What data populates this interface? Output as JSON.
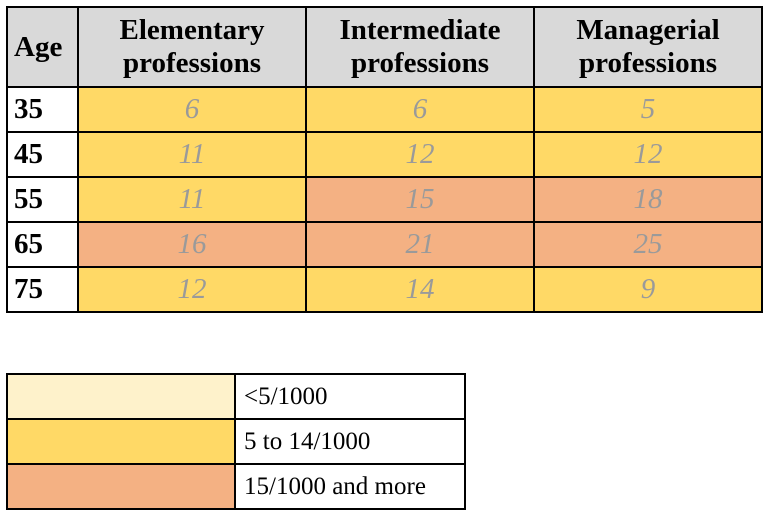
{
  "colors": {
    "low": "#fef2cb",
    "mid": "#ffd966",
    "high": "#f4b183",
    "header_bg": "#d9d9d9",
    "value_text": "#9a9a9a"
  },
  "table": {
    "headers": [
      "Age",
      "Elementary\nprofessions",
      "Intermediate\nprofessions",
      "Managerial\nprofessions"
    ],
    "rows": [
      {
        "age": "35",
        "cells": [
          {
            "value": "6",
            "level": "mid"
          },
          {
            "value": "6",
            "level": "mid"
          },
          {
            "value": "5",
            "level": "mid"
          }
        ]
      },
      {
        "age": "45",
        "cells": [
          {
            "value": "11",
            "level": "mid"
          },
          {
            "value": "12",
            "level": "mid"
          },
          {
            "value": "12",
            "level": "mid"
          }
        ]
      },
      {
        "age": "55",
        "cells": [
          {
            "value": "11",
            "level": "mid"
          },
          {
            "value": "15",
            "level": "high"
          },
          {
            "value": "18",
            "level": "high"
          }
        ]
      },
      {
        "age": "65",
        "cells": [
          {
            "value": "16",
            "level": "high"
          },
          {
            "value": "21",
            "level": "high"
          },
          {
            "value": "25",
            "level": "high"
          }
        ]
      },
      {
        "age": "75",
        "cells": [
          {
            "value": "12",
            "level": "mid"
          },
          {
            "value": "14",
            "level": "mid"
          },
          {
            "value": "9",
            "level": "mid"
          }
        ]
      }
    ]
  },
  "legend": {
    "items": [
      {
        "level": "low",
        "label": "<5/1000"
      },
      {
        "level": "mid",
        "label": "5 to 14/1000"
      },
      {
        "level": "high",
        "label": "15/1000 and more"
      }
    ]
  }
}
